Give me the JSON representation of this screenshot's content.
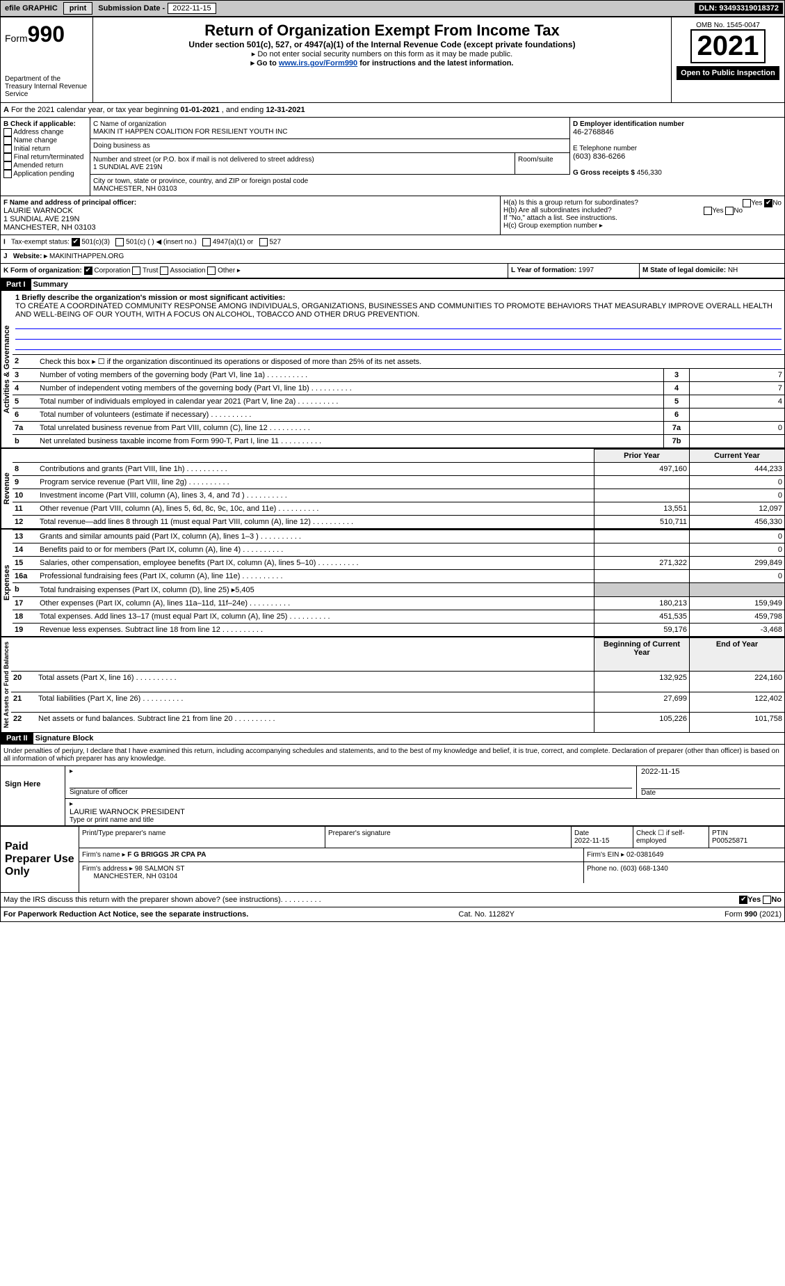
{
  "topbar": {
    "efile": "efile GRAPHIC",
    "print": "print",
    "sub_label": "Submission Date -",
    "sub_date": "2022-11-15",
    "dln_label": "DLN:",
    "dln": "93493319018372"
  },
  "header": {
    "form_prefix": "Form",
    "form": "990",
    "dept": "Department of the Treasury Internal Revenue Service",
    "title": "Return of Organization Exempt From Income Tax",
    "subtitle": "Under section 501(c), 527, or 4947(a)(1) of the Internal Revenue Code (except private foundations)",
    "note1": "▸ Do not enter social security numbers on this form as it may be made public.",
    "note2_pre": "▸ Go to ",
    "note2_link": "www.irs.gov/Form990",
    "note2_post": " for instructions and the latest information.",
    "omb": "OMB No. 1545-0047",
    "year": "2021",
    "open": "Open to Public Inspection"
  },
  "A": {
    "text": "For the 2021 calendar year, or tax year beginning ",
    "d1": "01-01-2021",
    "mid": "   , and ending ",
    "d2": "12-31-2021"
  },
  "B": {
    "title": "B Check if applicable:",
    "items": [
      "Address change",
      "Name change",
      "Initial return",
      "Final return/terminated",
      "Amended return",
      "Application pending"
    ]
  },
  "C": {
    "name_label": "C Name of organization",
    "name": "MAKIN IT HAPPEN COALITION FOR RESILIENT YOUTH INC",
    "dba": "Doing business as",
    "street_label": "Number and street (or P.O. box if mail is not delivered to street address)",
    "room": "Room/suite",
    "street": "1 SUNDIAL AVE 219N",
    "city_label": "City or town, state or province, country, and ZIP or foreign postal code",
    "city": "MANCHESTER, NH  03103"
  },
  "D": {
    "label": "D Employer identification number",
    "val": "46-2768846"
  },
  "E": {
    "label": "E Telephone number",
    "val": "(603) 836-6266"
  },
  "G": {
    "label": "G Gross receipts $",
    "val": "456,330"
  },
  "F": {
    "label": "F  Name and address of principal officer:",
    "name": "LAURIE WARNOCK",
    "addr1": "1 SUNDIAL AVE 219N",
    "addr2": "MANCHESTER, NH  03103"
  },
  "H": {
    "a": "H(a)  Is this a group return for subordinates?",
    "b": "H(b)  Are all subordinates included?",
    "b_note": "If \"No,\" attach a list. See instructions.",
    "c": "H(c)  Group exemption number ▸",
    "yes": "Yes",
    "no": "No"
  },
  "I": {
    "label": "Tax-exempt status:",
    "o1": "501(c)(3)",
    "o2": "501(c) (  ) ◀ (insert no.)",
    "o3": "4947(a)(1) or",
    "o4": "527"
  },
  "J": {
    "label": "Website: ▸",
    "val": "MAKINITHAPPEN.ORG"
  },
  "K": {
    "label": "K Form of organization:",
    "o1": "Corporation",
    "o2": "Trust",
    "o3": "Association",
    "o4": "Other ▸"
  },
  "L": {
    "label": "L Year of formation:",
    "val": "1997"
  },
  "M": {
    "label": "M State of legal domicile:",
    "val": "NH"
  },
  "partI": {
    "num": "Part I",
    "title": "Summary"
  },
  "gov": {
    "vlabel": "Activities & Governance",
    "q1": "1  Briefly describe the organization's mission or most significant activities:",
    "mission": "TO CREATE A COORDINATED COMMUNITY RESPONSE AMONG INDIVIDUALS, ORGANIZATIONS, BUSINESSES AND COMMUNITIES TO PROMOTE BEHAVIORS THAT MEASURABLY IMPROVE OVERALL HEALTH AND WELL-BEING OF OUR YOUTH, WITH A FOCUS ON ALCOHOL, TOBACCO AND OTHER DRUG PREVENTION.",
    "rows": [
      {
        "n": "2",
        "t": "Check this box ▸ ☐  if the organization discontinued its operations or disposed of more than 25% of its net assets."
      },
      {
        "n": "3",
        "t": "Number of voting members of the governing body (Part VI, line 1a)",
        "c": "3",
        "v": "7"
      },
      {
        "n": "4",
        "t": "Number of independent voting members of the governing body (Part VI, line 1b)",
        "c": "4",
        "v": "7"
      },
      {
        "n": "5",
        "t": "Total number of individuals employed in calendar year 2021 (Part V, line 2a)",
        "c": "5",
        "v": "4"
      },
      {
        "n": "6",
        "t": "Total number of volunteers (estimate if necessary)",
        "c": "6",
        "v": ""
      },
      {
        "n": "7a",
        "t": "Total unrelated business revenue from Part VIII, column (C), line 12",
        "c": "7a",
        "v": "0"
      },
      {
        "n": "b",
        "t": "Net unrelated business taxable income from Form 990-T, Part I, line 11",
        "c": "7b",
        "v": ""
      }
    ]
  },
  "rev": {
    "vlabel": "Revenue",
    "h1": "Prior Year",
    "h2": "Current Year",
    "rows": [
      {
        "n": "8",
        "t": "Contributions and grants (Part VIII, line 1h)",
        "p": "497,160",
        "c": "444,233"
      },
      {
        "n": "9",
        "t": "Program service revenue (Part VIII, line 2g)",
        "p": "",
        "c": "0"
      },
      {
        "n": "10",
        "t": "Investment income (Part VIII, column (A), lines 3, 4, and 7d )",
        "p": "",
        "c": "0"
      },
      {
        "n": "11",
        "t": "Other revenue (Part VIII, column (A), lines 5, 6d, 8c, 9c, 10c, and 11e)",
        "p": "13,551",
        "c": "12,097"
      },
      {
        "n": "12",
        "t": "Total revenue—add lines 8 through 11 (must equal Part VIII, column (A), line 12)",
        "p": "510,711",
        "c": "456,330"
      }
    ]
  },
  "exp": {
    "vlabel": "Expenses",
    "rows": [
      {
        "n": "13",
        "t": "Grants and similar amounts paid (Part IX, column (A), lines 1–3 )",
        "p": "",
        "c": "0"
      },
      {
        "n": "14",
        "t": "Benefits paid to or for members (Part IX, column (A), line 4)",
        "p": "",
        "c": "0"
      },
      {
        "n": "15",
        "t": "Salaries, other compensation, employee benefits (Part IX, column (A), lines 5–10)",
        "p": "271,322",
        "c": "299,849"
      },
      {
        "n": "16a",
        "t": "Professional fundraising fees (Part IX, column (A), line 11e)",
        "p": "",
        "c": "0"
      },
      {
        "n": "b",
        "t": "Total fundraising expenses (Part IX, column (D), line 25) ▸5,405",
        "p": null,
        "c": null,
        "grey": true
      },
      {
        "n": "17",
        "t": "Other expenses (Part IX, column (A), lines 11a–11d, 11f–24e)",
        "p": "180,213",
        "c": "159,949"
      },
      {
        "n": "18",
        "t": "Total expenses. Add lines 13–17 (must equal Part IX, column (A), line 25)",
        "p": "451,535",
        "c": "459,798"
      },
      {
        "n": "19",
        "t": "Revenue less expenses. Subtract line 18 from line 12",
        "p": "59,176",
        "c": "-3,468"
      }
    ]
  },
  "net": {
    "vlabel": "Net Assets or Fund Balances",
    "h1": "Beginning of Current Year",
    "h2": "End of Year",
    "rows": [
      {
        "n": "20",
        "t": "Total assets (Part X, line 16)",
        "p": "132,925",
        "c": "224,160"
      },
      {
        "n": "21",
        "t": "Total liabilities (Part X, line 26)",
        "p": "27,699",
        "c": "122,402"
      },
      {
        "n": "22",
        "t": "Net assets or fund balances. Subtract line 21 from line 20",
        "p": "105,226",
        "c": "101,758"
      }
    ]
  },
  "partII": {
    "num": "Part II",
    "title": "Signature Block"
  },
  "decl": "Under penalties of perjury, I declare that I have examined this return, including accompanying schedules and statements, and to the best of my knowledge and belief, it is true, correct, and complete. Declaration of preparer (other than officer) is based on all information of which preparer has any knowledge.",
  "sign": {
    "here": "Sign Here",
    "sig": "Signature of officer",
    "date": "Date",
    "dval": "2022-11-15",
    "name": "LAURIE WARNOCK  PRESIDENT",
    "type": "Type or print name and title"
  },
  "paid": {
    "here": "Paid Preparer Use Only",
    "h1": "Print/Type preparer's name",
    "h2": "Preparer's signature",
    "h3": "Date",
    "h4": "Check ☐ if self-employed",
    "h5": "PTIN",
    "d3": "2022-11-15",
    "ptin": "P00525871",
    "firm_label": "Firm's name     ▸",
    "firm": "F G BRIGGS JR CPA PA",
    "ein_label": "Firm's EIN ▸",
    "ein": "02-0381649",
    "addr_label": "Firm's address ▸",
    "addr1": "98 SALMON ST",
    "addr2": "MANCHESTER, NH  03104",
    "phone_label": "Phone no.",
    "phone": "(603) 668-1340"
  },
  "discuss": {
    "t": "May the IRS discuss this return with the preparer shown above? (see instructions)",
    "yes": "Yes",
    "no": "No"
  },
  "foot": {
    "l": "For Paperwork Reduction Act Notice, see the separate instructions.",
    "m": "Cat. No. 11282Y",
    "r": "Form 990 (2021)"
  }
}
